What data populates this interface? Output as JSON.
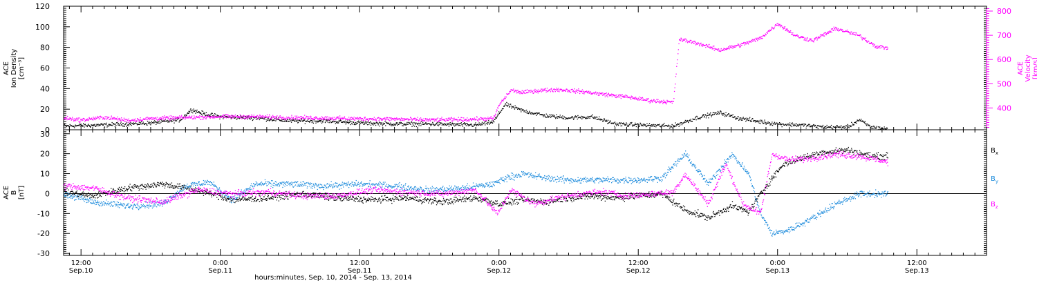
{
  "figure": {
    "xaxis_title": "hours:minutes, Sep. 10, 2014 - Sep. 13, 2014"
  },
  "chart_data": [
    {
      "type": "scatter",
      "x_axis": {
        "range": [
          "2014-09-10T10:30",
          "2014-09-13T18:00"
        ],
        "ticks": [
          {
            "time": "2014-09-10T12:00",
            "label": "12:00",
            "sublabel": "Sep.10"
          },
          {
            "time": "2014-09-11T00:00",
            "label": "0:00",
            "sublabel": "Sep.11"
          },
          {
            "time": "2014-09-11T12:00",
            "label": "12:00",
            "sublabel": "Sep.11"
          },
          {
            "time": "2014-09-12T00:00",
            "label": "0:00",
            "sublabel": "Sep.12"
          },
          {
            "time": "2014-09-12T12:00",
            "label": "12:00",
            "sublabel": "Sep.12"
          },
          {
            "time": "2014-09-13T00:00",
            "label": "0:00",
            "sublabel": "Sep.13"
          },
          {
            "time": "2014-09-13T12:00",
            "label": "12:00",
            "sublabel": "Sep.13"
          }
        ]
      },
      "y_left": {
        "label_lines": [
          "ACE",
          "Ion Density",
          "[cm⁻³]"
        ],
        "range": [
          0,
          120
        ],
        "ticks": [
          0,
          20,
          40,
          60,
          80,
          100,
          120
        ],
        "color": "#000000"
      },
      "y_right": {
        "label_lines": [
          "ACE",
          "Velocity",
          "[km/s]"
        ],
        "range": [
          310,
          820
        ],
        "ticks": [
          400,
          500,
          600,
          700,
          800
        ],
        "color": "#ff00ff"
      },
      "series": [
        {
          "axis": "left",
          "color": "#000000",
          "points": [
            [
              "2014-09-10T10:30",
              4
            ],
            [
              "2014-09-10T14:00",
              5
            ],
            [
              "2014-09-10T18:00",
              7
            ],
            [
              "2014-09-10T20:30",
              10
            ],
            [
              "2014-09-10T21:30",
              20
            ],
            [
              "2014-09-10T22:30",
              16
            ],
            [
              "2014-09-11T00:00",
              13
            ],
            [
              "2014-09-11T03:00",
              12
            ],
            [
              "2014-09-11T06:00",
              9
            ],
            [
              "2014-09-11T09:00",
              9
            ],
            [
              "2014-09-11T12:00",
              7
            ],
            [
              "2014-09-11T15:00",
              6
            ],
            [
              "2014-09-11T18:00",
              6
            ],
            [
              "2014-09-11T22:00",
              5
            ],
            [
              "2014-09-11T23:30",
              8
            ],
            [
              "2014-09-12T00:30",
              25
            ],
            [
              "2014-09-12T02:00",
              19
            ],
            [
              "2014-09-12T04:00",
              14
            ],
            [
              "2014-09-12T06:00",
              12
            ],
            [
              "2014-09-12T08:00",
              13
            ],
            [
              "2014-09-12T10:00",
              6
            ],
            [
              "2014-09-12T12:00",
              5
            ],
            [
              "2014-09-12T15:00",
              4
            ],
            [
              "2014-09-12T17:00",
              12
            ],
            [
              "2014-09-12T19:00",
              17
            ],
            [
              "2014-09-12T20:30",
              12
            ],
            [
              "2014-09-12T22:00",
              9
            ],
            [
              "2014-09-13T00:00",
              6
            ],
            [
              "2014-09-13T02:00",
              5
            ],
            [
              "2014-09-13T04:00",
              3
            ],
            [
              "2014-09-13T06:00",
              3
            ],
            [
              "2014-09-13T07:00",
              10
            ],
            [
              "2014-09-13T08:00",
              3
            ],
            [
              "2014-09-13T09:30",
              1
            ]
          ]
        },
        {
          "axis": "right",
          "color": "#ff00ff",
          "points": [
            [
              "2014-09-10T10:30",
              360
            ],
            [
              "2014-09-10T12:00",
              352
            ],
            [
              "2014-09-10T14:00",
              363
            ],
            [
              "2014-09-10T16:00",
              350
            ],
            [
              "2014-09-10T18:00",
              358
            ],
            [
              "2014-09-10T21:00",
              362
            ],
            [
              "2014-09-11T00:00",
              366
            ],
            [
              "2014-09-11T03:00",
              366
            ],
            [
              "2014-09-11T06:00",
              362
            ],
            [
              "2014-09-11T09:00",
              360
            ],
            [
              "2014-09-11T12:00",
              357
            ],
            [
              "2014-09-11T15:00",
              356
            ],
            [
              "2014-09-11T18:00",
              352
            ],
            [
              "2014-09-11T21:00",
              354
            ],
            [
              "2014-09-11T23:30",
              358
            ],
            [
              "2014-09-12T00:00",
              415
            ],
            [
              "2014-09-12T01:00",
              475
            ],
            [
              "2014-09-12T02:00",
              465
            ],
            [
              "2014-09-12T03:00",
              472
            ],
            [
              "2014-09-12T05:00",
              478
            ],
            [
              "2014-09-12T07:00",
              470
            ],
            [
              "2014-09-12T09:00",
              458
            ],
            [
              "2014-09-12T11:00",
              447
            ],
            [
              "2014-09-12T13:00",
              432
            ],
            [
              "2014-09-12T15:00",
              425
            ],
            [
              "2014-09-12T15:30",
              685
            ],
            [
              "2014-09-12T17:00",
              670
            ],
            [
              "2014-09-12T19:00",
              640
            ],
            [
              "2014-09-12T21:00",
              665
            ],
            [
              "2014-09-12T22:30",
              690
            ],
            [
              "2014-09-13T00:00",
              750
            ],
            [
              "2014-09-13T01:30",
              700
            ],
            [
              "2014-09-13T03:00",
              680
            ],
            [
              "2014-09-13T05:00",
              730
            ],
            [
              "2014-09-13T07:00",
              700
            ],
            [
              "2014-09-13T08:30",
              655
            ],
            [
              "2014-09-13T09:30",
              650
            ]
          ]
        }
      ]
    },
    {
      "type": "scatter",
      "y_left": {
        "label_lines": [
          "ACE",
          "B",
          "[nT]"
        ],
        "range": [
          -31,
          32
        ],
        "ticks": [
          -30,
          -20,
          -10,
          0,
          10,
          20,
          30
        ],
        "color": "#000000"
      },
      "zero_line": true,
      "series": [
        {
          "name": "Bx",
          "color": "#000000",
          "points": [
            [
              "2014-09-10T10:30",
              1
            ],
            [
              "2014-09-10T13:00",
              -1
            ],
            [
              "2014-09-10T16:00",
              3
            ],
            [
              "2014-09-10T19:00",
              5
            ],
            [
              "2014-09-10T22:00",
              2
            ],
            [
              "2014-09-11T01:00",
              -3
            ],
            [
              "2014-09-11T04:00",
              -2
            ],
            [
              "2014-09-11T07:00",
              0
            ],
            [
              "2014-09-11T10:00",
              -2
            ],
            [
              "2014-09-11T13:00",
              -3
            ],
            [
              "2014-09-11T16:00",
              -2
            ],
            [
              "2014-09-11T19:00",
              -4
            ],
            [
              "2014-09-11T22:00",
              -2
            ],
            [
              "2014-09-12T00:00",
              -5
            ],
            [
              "2014-09-12T02:00",
              -3
            ],
            [
              "2014-09-12T04:00",
              -4
            ],
            [
              "2014-09-12T06:00",
              -2
            ],
            [
              "2014-09-12T08:00",
              -1
            ],
            [
              "2014-09-12T10:00",
              -2
            ],
            [
              "2014-09-12T12:00",
              -1
            ],
            [
              "2014-09-12T14:00",
              0
            ],
            [
              "2014-09-12T16:00",
              -8
            ],
            [
              "2014-09-12T18:00",
              -12
            ],
            [
              "2014-09-12T20:00",
              -6
            ],
            [
              "2014-09-12T21:30",
              -9
            ],
            [
              "2014-09-12T22:30",
              0
            ],
            [
              "2014-09-12T23:30",
              8
            ],
            [
              "2014-09-13T00:30",
              15
            ],
            [
              "2014-09-13T02:00",
              18
            ],
            [
              "2014-09-13T04:00",
              21
            ],
            [
              "2014-09-13T06:00",
              22
            ],
            [
              "2014-09-13T08:00",
              19
            ],
            [
              "2014-09-13T09:30",
              19
            ]
          ]
        },
        {
          "name": "By",
          "color": "#1e8cdc",
          "points": [
            [
              "2014-09-10T10:30",
              0
            ],
            [
              "2014-09-10T13:00",
              -4
            ],
            [
              "2014-09-10T16:00",
              -6
            ],
            [
              "2014-09-10T19:00",
              -5
            ],
            [
              "2014-09-10T21:00",
              4
            ],
            [
              "2014-09-10T23:00",
              6
            ],
            [
              "2014-09-11T01:00",
              -3
            ],
            [
              "2014-09-11T03:00",
              5
            ],
            [
              "2014-09-11T06:00",
              5
            ],
            [
              "2014-09-11T09:00",
              4
            ],
            [
              "2014-09-11T12:00",
              5
            ],
            [
              "2014-09-11T15:00",
              4
            ],
            [
              "2014-09-11T18:00",
              2
            ],
            [
              "2014-09-11T21:00",
              3
            ],
            [
              "2014-09-11T23:30",
              5
            ],
            [
              "2014-09-12T00:30",
              8
            ],
            [
              "2014-09-12T02:00",
              10
            ],
            [
              "2014-09-12T04:00",
              8
            ],
            [
              "2014-09-12T06:00",
              7
            ],
            [
              "2014-09-12T08:00",
              7
            ],
            [
              "2014-09-12T10:00",
              7
            ],
            [
              "2014-09-12T12:00",
              7
            ],
            [
              "2014-09-12T14:00",
              8
            ],
            [
              "2014-09-12T16:00",
              20
            ],
            [
              "2014-09-12T18:00",
              5
            ],
            [
              "2014-09-12T20:00",
              20
            ],
            [
              "2014-09-12T21:30",
              10
            ],
            [
              "2014-09-12T22:30",
              -10
            ],
            [
              "2014-09-12T23:30",
              -20
            ],
            [
              "2014-09-13T01:00",
              -18
            ],
            [
              "2014-09-13T03:00",
              -12
            ],
            [
              "2014-09-13T05:00",
              -5
            ],
            [
              "2014-09-13T07:00",
              0
            ],
            [
              "2014-09-13T08:00",
              0
            ],
            [
              "2014-09-13T09:30",
              0
            ]
          ]
        },
        {
          "name": "Bz",
          "color": "#ff00ff",
          "points": [
            [
              "2014-09-10T10:30",
              4
            ],
            [
              "2014-09-10T13:00",
              3
            ],
            [
              "2014-09-10T16:00",
              -2
            ],
            [
              "2014-09-10T19:00",
              -4
            ],
            [
              "2014-09-10T22:00",
              2
            ],
            [
              "2014-09-11T01:00",
              0
            ],
            [
              "2014-09-11T04:00",
              1
            ],
            [
              "2014-09-11T07:00",
              -1
            ],
            [
              "2014-09-11T10:00",
              -1
            ],
            [
              "2014-09-11T13:00",
              2
            ],
            [
              "2014-09-11T16:00",
              1
            ],
            [
              "2014-09-11T19:00",
              0
            ],
            [
              "2014-09-11T22:00",
              2
            ],
            [
              "2014-09-11T23:50",
              -10
            ],
            [
              "2014-09-12T01:00",
              2
            ],
            [
              "2014-09-12T03:00",
              -5
            ],
            [
              "2014-09-12T05:00",
              -2
            ],
            [
              "2014-09-12T07:00",
              0
            ],
            [
              "2014-09-12T09:00",
              1
            ],
            [
              "2014-09-12T11:00",
              -1
            ],
            [
              "2014-09-12T13:00",
              0
            ],
            [
              "2014-09-12T15:00",
              1
            ],
            [
              "2014-09-12T16:00",
              10
            ],
            [
              "2014-09-12T18:00",
              -5
            ],
            [
              "2014-09-12T19:30",
              15
            ],
            [
              "2014-09-12T21:00",
              -5
            ],
            [
              "2014-09-12T22:30",
              -10
            ],
            [
              "2014-09-12T23:30",
              20
            ],
            [
              "2014-09-13T01:00",
              17
            ],
            [
              "2014-09-13T03:00",
              18
            ],
            [
              "2014-09-13T05:00",
              20
            ],
            [
              "2014-09-13T07:00",
              19
            ],
            [
              "2014-09-13T09:30",
              16
            ]
          ]
        }
      ]
    }
  ]
}
